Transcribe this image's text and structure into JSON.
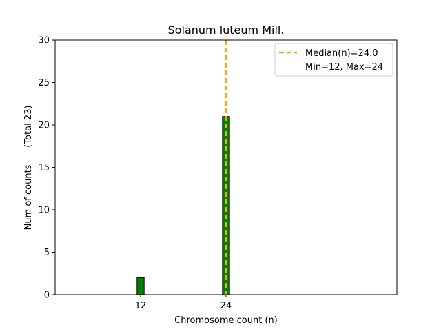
{
  "chart_data": {
    "type": "bar",
    "title": "Solanum luteum Mill.",
    "xlabel": "Chromosome count (n)",
    "ylabel": "Num of counts      (Total 23)",
    "xlim": [
      0,
      48
    ],
    "ylim": [
      0,
      30
    ],
    "x_ticks": [
      12,
      24
    ],
    "y_ticks": [
      0,
      5,
      10,
      15,
      20,
      25,
      30
    ],
    "bar_width": 1,
    "bar_color": "#008000",
    "bar_edge_color": "#000000",
    "series": [
      {
        "x": [
          12,
          24
        ],
        "values": [
          2,
          21
        ]
      }
    ],
    "baseline_range": [
      0,
      27
    ],
    "median_line": {
      "x": 24.0,
      "color": "#FFA500",
      "style": "dashed"
    },
    "legend": {
      "position": "top-right",
      "entries": [
        "Median(n)=24.0",
        "Min=12, Max=24"
      ]
    },
    "grid": false
  }
}
